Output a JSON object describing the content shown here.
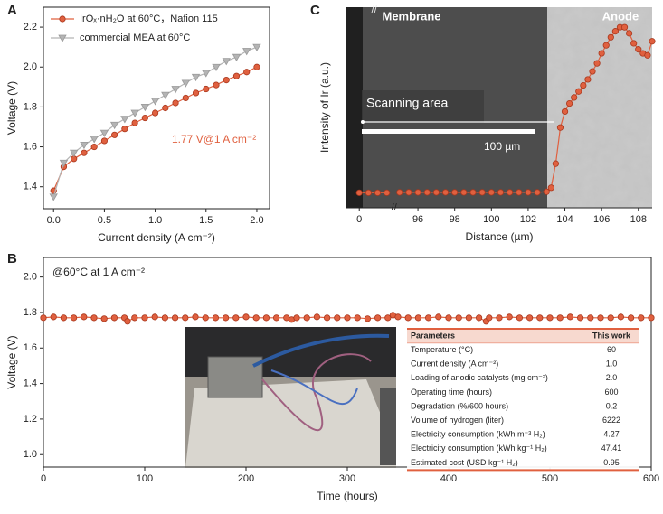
{
  "chart_data": [
    {
      "type": "line",
      "label": "A",
      "xlabel": "Current density (A cm⁻²)",
      "ylabel": "Voltage (V)",
      "xlim": [
        -0.1,
        2.125
      ],
      "ylim": [
        1.29,
        2.3
      ],
      "xticks": [
        {
          "value": 0,
          "label": "0.0"
        },
        0.5,
        {
          "value": 1,
          "label": "1.0"
        },
        1.5,
        {
          "value": 2,
          "label": "2.0"
        }
      ],
      "yticks": [
        1.4,
        1.6,
        1.8,
        {
          "value": 2,
          "label": "2.0"
        },
        2.2
      ],
      "legend": "upper left",
      "annotations": [
        "1.77 V@1 A cm⁻²"
      ],
      "x": [
        0,
        0.1,
        0.2,
        0.3,
        0.4,
        0.5,
        0.6,
        0.7,
        0.8,
        0.9,
        1.0,
        1.1,
        1.2,
        1.3,
        1.4,
        1.5,
        1.6,
        1.7,
        1.8,
        1.9,
        2.0
      ],
      "series": [
        {
          "name": "IrOₓ·nH₂O at 60°C，Nafion 115",
          "color": "#e0603f",
          "marker": "circle",
          "values": [
            1.38,
            1.5,
            1.54,
            1.57,
            1.6,
            1.63,
            1.66,
            1.69,
            1.72,
            1.745,
            1.77,
            1.795,
            1.82,
            1.845,
            1.87,
            1.89,
            1.91,
            1.935,
            1.955,
            1.975,
            2.0
          ]
        },
        {
          "name": "commercial MEA at 60°C",
          "color": "#b4b4b4",
          "marker": "triangle",
          "values": [
            1.35,
            1.52,
            1.57,
            1.61,
            1.64,
            1.67,
            1.71,
            1.74,
            1.77,
            1.8,
            1.83,
            1.86,
            1.89,
            1.92,
            1.95,
            1.97,
            2.0,
            2.03,
            2.05,
            2.08,
            2.1
          ]
        }
      ]
    },
    {
      "type": "line",
      "label": "B",
      "xlabel": "Time (hours)",
      "ylabel": "Voltage (V)",
      "xlim": [
        0,
        600
      ],
      "ylim": [
        0.93,
        2.11
      ],
      "xticks": [
        0,
        100,
        200,
        300,
        400,
        500,
        600
      ],
      "yticks": [
        {
          "value": 1,
          "label": "1.0"
        },
        1.2,
        1.4,
        1.6,
        1.8,
        {
          "value": 2,
          "label": "2.0"
        }
      ],
      "annotations": [
        "@60°C at 1 A cm⁻²"
      ],
      "x": [
        0,
        10,
        20,
        30,
        40,
        50,
        60,
        70,
        80,
        83,
        90,
        100,
        110,
        120,
        130,
        140,
        150,
        160,
        170,
        180,
        190,
        200,
        210,
        220,
        230,
        240,
        245,
        250,
        260,
        270,
        280,
        290,
        300,
        310,
        320,
        330,
        340,
        345,
        350,
        360,
        370,
        380,
        390,
        400,
        410,
        420,
        430,
        437,
        440,
        450,
        460,
        470,
        480,
        490,
        500,
        510,
        520,
        530,
        540,
        550,
        560,
        570,
        580,
        590,
        600
      ],
      "series": [
        {
          "name": null,
          "color": "#e0603f",
          "marker": "circle",
          "values": [
            1.77,
            1.775,
            1.77,
            1.77,
            1.775,
            1.77,
            1.765,
            1.77,
            1.77,
            1.75,
            1.77,
            1.77,
            1.775,
            1.77,
            1.77,
            1.77,
            1.775,
            1.77,
            1.77,
            1.77,
            1.77,
            1.775,
            1.77,
            1.77,
            1.77,
            1.77,
            1.76,
            1.77,
            1.77,
            1.775,
            1.77,
            1.77,
            1.77,
            1.77,
            1.765,
            1.77,
            1.77,
            1.785,
            1.775,
            1.77,
            1.77,
            1.77,
            1.775,
            1.77,
            1.77,
            1.77,
            1.77,
            1.75,
            1.77,
            1.77,
            1.775,
            1.77,
            1.77,
            1.77,
            1.77,
            1.77,
            1.775,
            1.77,
            1.77,
            1.77,
            1.77,
            1.775,
            1.77,
            1.77,
            1.77
          ]
        }
      ],
      "table": {
        "header": [
          "Parameters",
          "This work"
        ],
        "rows": [
          [
            "Temperature (°C)",
            "60"
          ],
          [
            "Current density (A cm⁻²)",
            "1.0"
          ],
          [
            "Loading of anodic catalysts (mg cm⁻²)",
            "2.0"
          ],
          [
            "Operating time (hours)",
            "600"
          ],
          [
            "Degradation (%/600 hours)",
            "0.2"
          ],
          [
            "Volume of hydrogen (liter)",
            "6222"
          ],
          [
            "Electricity consumption (kWh m⁻³ H₂)",
            "4.27"
          ],
          [
            "Electricity consumption (kWh kg⁻¹ H₂)",
            "47.41"
          ],
          [
            "Estimated cost (USD kg⁻¹ H₂)",
            "0.95"
          ]
        ]
      }
    },
    {
      "type": "line",
      "label": "C",
      "xlabel": "Distance (µm)",
      "ylabel": "Intensity of Ir (a.u.)",
      "xlim": [
        -0.7,
        108.75
      ],
      "ylim": [
        0,
        1
      ],
      "x_break": [
        1.7,
        94.9
      ],
      "xticks": [
        0,
        96,
        98,
        100,
        102,
        104,
        106,
        108
      ],
      "annotations": [
        "Membrane",
        "Anode",
        "Scanning area",
        "100 µm"
      ],
      "x": [
        0,
        0.5,
        1,
        1.5,
        95,
        95.5,
        96,
        96.5,
        97,
        97.5,
        98,
        98.5,
        99,
        99.5,
        100,
        100.5,
        101,
        101.5,
        102,
        102.5,
        103,
        103.25,
        103.5,
        103.75,
        104,
        104.25,
        104.5,
        104.75,
        105,
        105.25,
        105.5,
        105.75,
        106,
        106.25,
        106.5,
        106.75,
        107,
        107.25,
        107.5,
        107.75,
        108,
        108.25,
        108.5,
        108.75
      ],
      "series": [
        {
          "name": null,
          "color": "#e0603f",
          "marker": "circle",
          "values": [
            0.075,
            0.075,
            0.075,
            0.075,
            0.077,
            0.077,
            0.077,
            0.077,
            0.077,
            0.077,
            0.077,
            0.077,
            0.077,
            0.077,
            0.077,
            0.077,
            0.077,
            0.077,
            0.077,
            0.077,
            0.08,
            0.1,
            0.22,
            0.4,
            0.48,
            0.52,
            0.55,
            0.58,
            0.61,
            0.64,
            0.68,
            0.72,
            0.77,
            0.81,
            0.85,
            0.88,
            0.9,
            0.9,
            0.87,
            0.82,
            0.79,
            0.77,
            0.76,
            0.83
          ]
        }
      ]
    }
  ]
}
